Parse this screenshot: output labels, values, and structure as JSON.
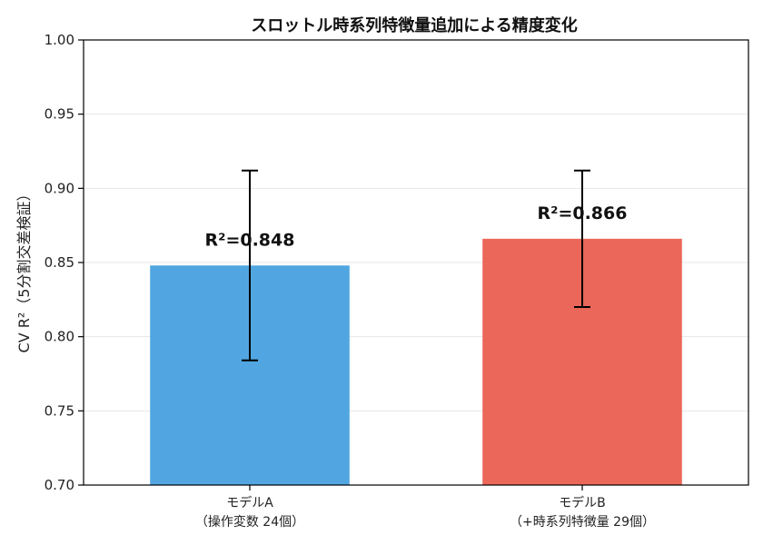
{
  "chart_data": {
    "type": "bar",
    "title": "スロットル時系列特徴量追加による精度変化",
    "xlabel": "",
    "ylabel": "CV R²（5分割交差検証）",
    "ylim": [
      0.7,
      1.0
    ],
    "yticks": [
      "0.70",
      "0.75",
      "0.80",
      "0.85",
      "0.90",
      "0.95",
      "1.00"
    ],
    "ytick_values": [
      0.7,
      0.75,
      0.8,
      0.85,
      0.9,
      0.95,
      1.0
    ],
    "grid": true,
    "categories": [
      {
        "line1": "モデルA",
        "line2": "（操作変数 24個）"
      },
      {
        "line1": "モデルB",
        "line2": "（+時系列特徴量 29個）"
      }
    ],
    "values": [
      0.848,
      0.866
    ],
    "errors": [
      0.064,
      0.046
    ],
    "data_labels": [
      "R²=0.848",
      "R²=0.866"
    ],
    "colors": [
      "#51a6e1",
      "#eb6759"
    ]
  }
}
